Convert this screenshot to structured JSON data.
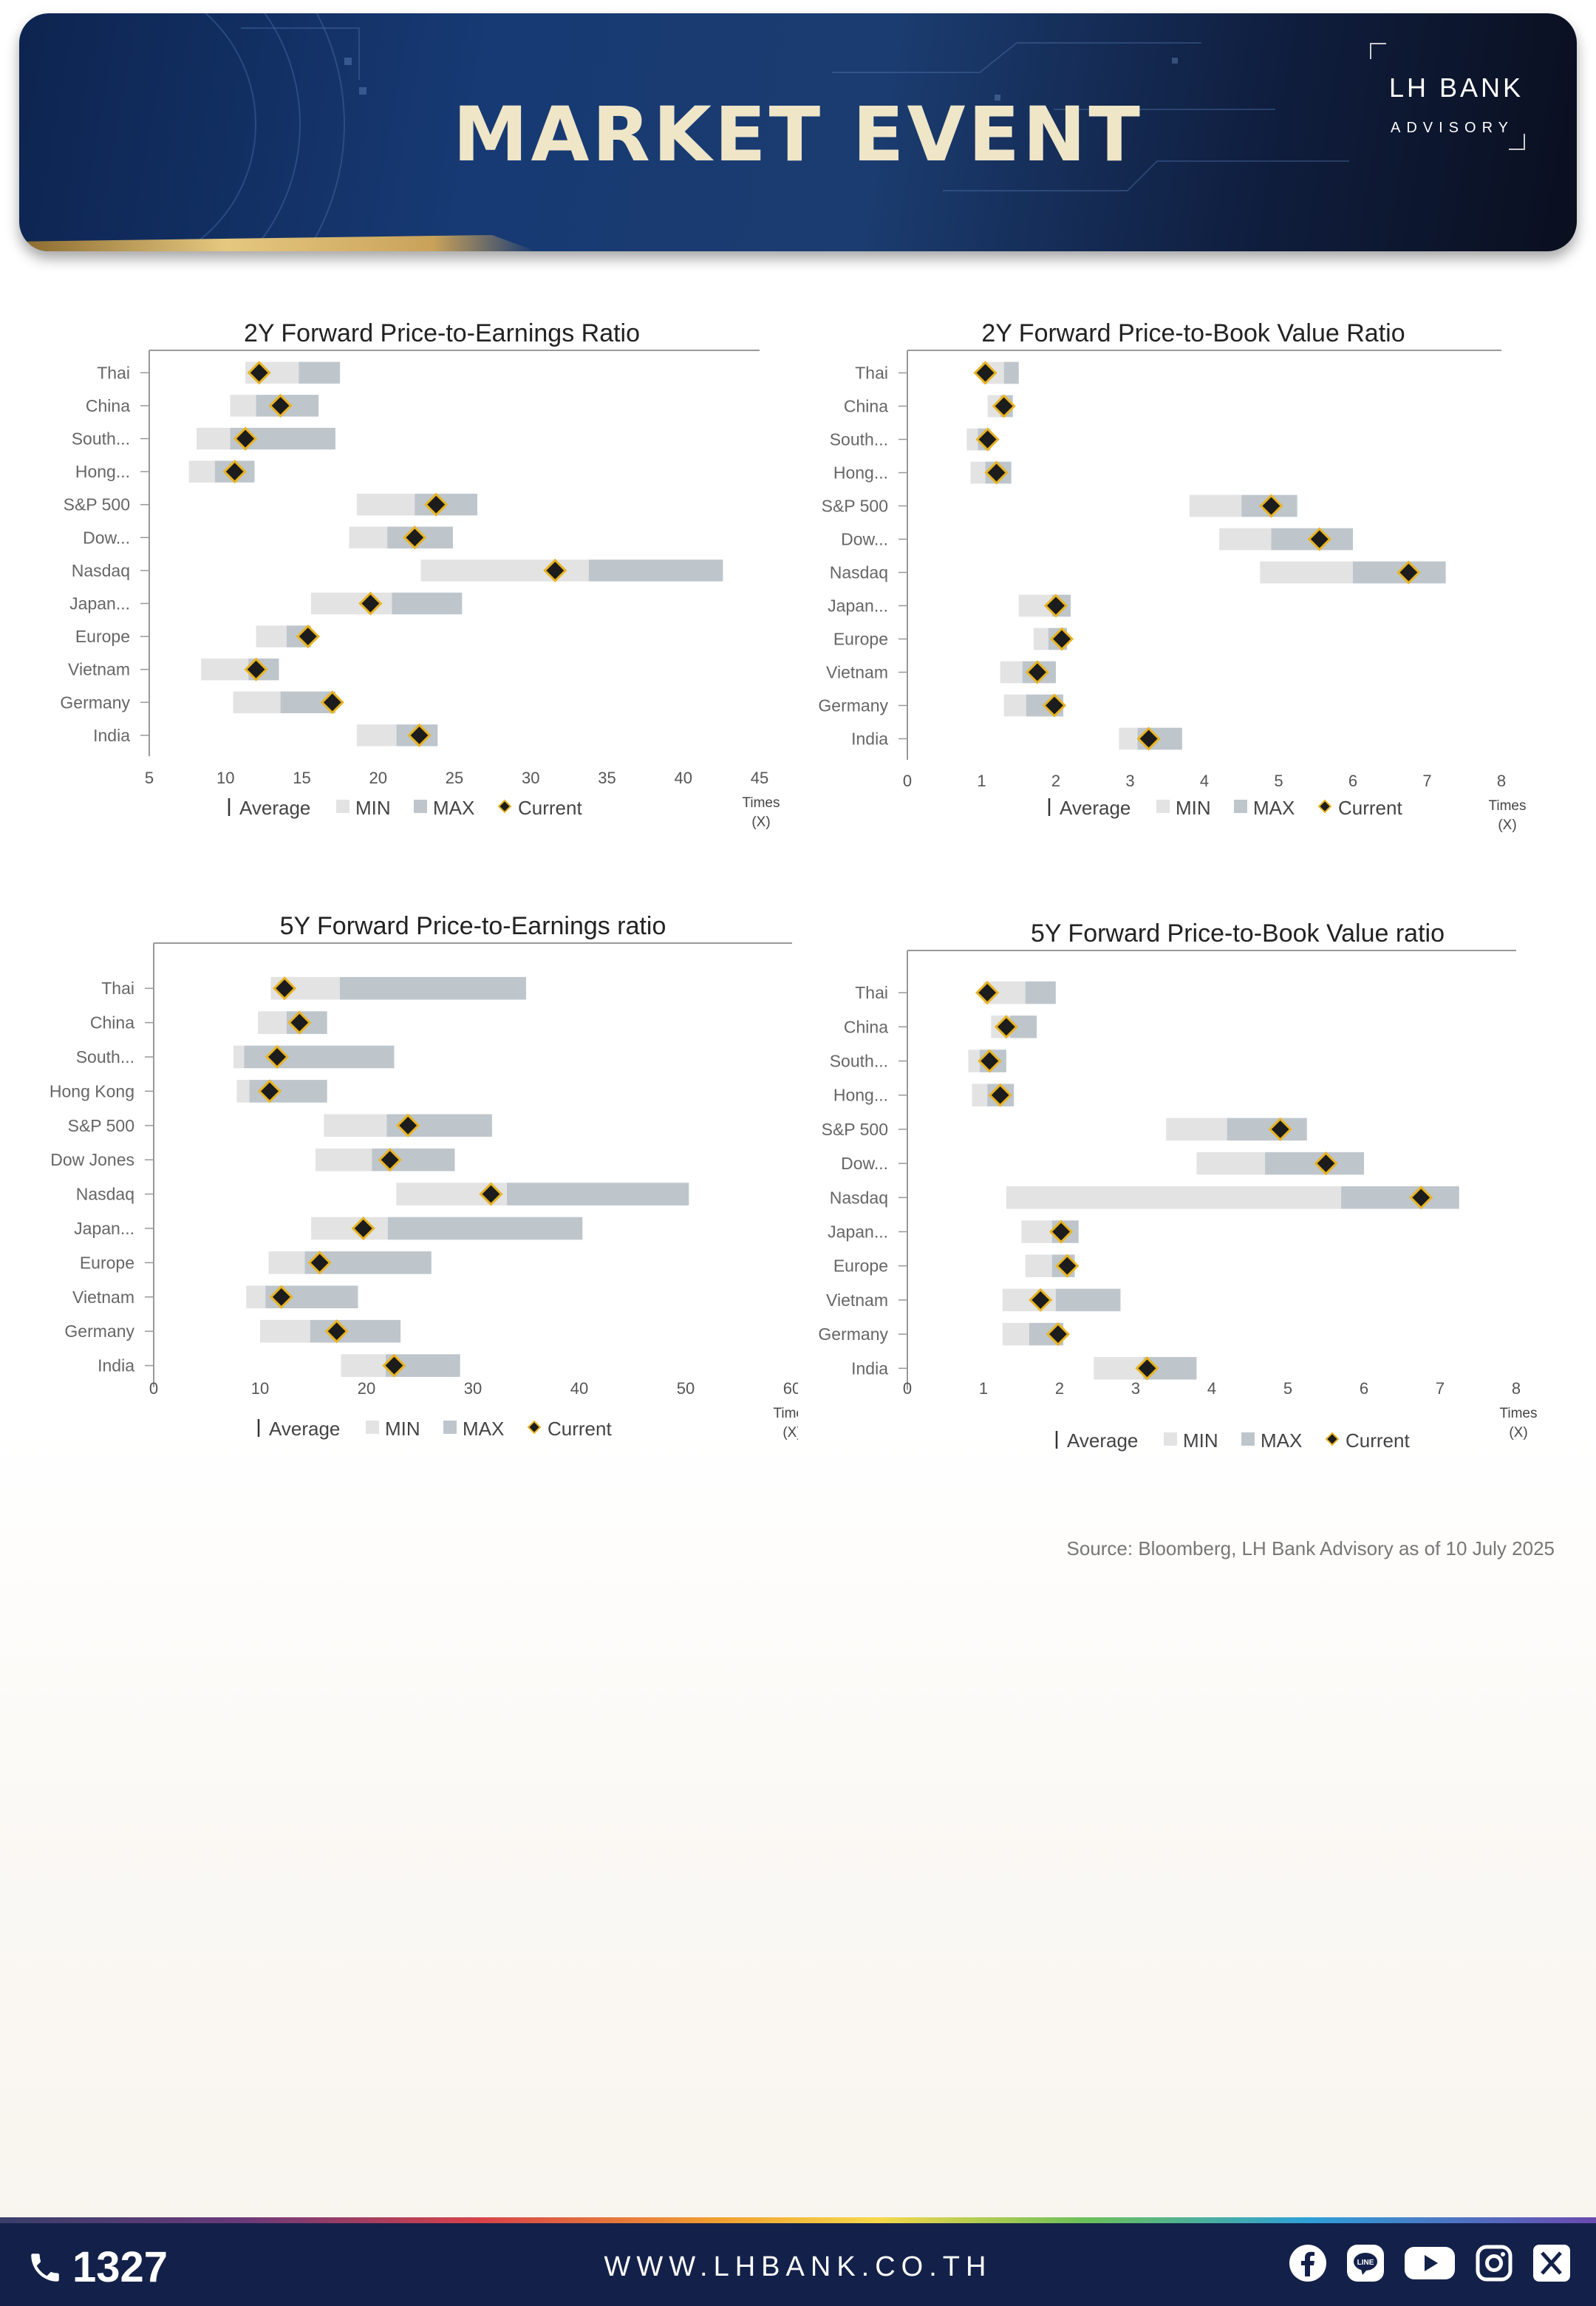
{
  "header": {
    "title": "MARKET EVENT",
    "logo_main": "LH BANK",
    "logo_sub": "ADVISORY"
  },
  "legend": {
    "average": "Average",
    "min": "MIN",
    "max": "MAX",
    "current": "Current"
  },
  "axis_unit": [
    "Times",
    "(X)"
  ],
  "colors": {
    "min": "#e3e3e3",
    "max": "#bec6cc",
    "current_fill": "#1c1c1c",
    "current_edge": "#e8b424",
    "axis": "#999999"
  },
  "chart_data": [
    {
      "type": "bar",
      "title": "2Y Forward Price-to-Earnings Ratio",
      "categories": [
        "Thai",
        "China",
        "South...",
        "Hong...",
        "S&P 500",
        "Dow...",
        "Nasdaq",
        "Japan...",
        "Europe",
        "Vietnam",
        "Germany",
        "India"
      ],
      "min": [
        11.3,
        10.3,
        8.1,
        7.6,
        18.6,
        18.1,
        22.8,
        15.6,
        12.0,
        8.4,
        10.5,
        18.6
      ],
      "average": [
        14.8,
        12.0,
        10.3,
        9.3,
        22.4,
        20.6,
        33.8,
        20.9,
        14.0,
        11.5,
        13.6,
        21.2
      ],
      "max": [
        17.5,
        16.1,
        17.2,
        11.9,
        26.5,
        24.9,
        42.6,
        25.5,
        15.6,
        13.5,
        17.2,
        23.9
      ],
      "current": [
        12.2,
        13.6,
        11.3,
        10.6,
        23.8,
        22.4,
        31.6,
        19.5,
        15.4,
        12.0,
        17.0,
        22.7
      ],
      "xlim": [
        5,
        45
      ],
      "xticks": [
        5,
        10,
        15,
        20,
        25,
        30,
        35,
        40,
        45
      ]
    },
    {
      "type": "bar",
      "title": "2Y Forward Price-to-Book Value Ratio",
      "categories": [
        "Thai",
        "China",
        "South...",
        "Hong...",
        "S&P 500",
        "Dow...",
        "Nasdaq",
        "Japan...",
        "Europe",
        "Vietnam",
        "Germany",
        "India"
      ],
      "min": [
        1.0,
        1.08,
        0.8,
        0.85,
        3.8,
        4.2,
        4.75,
        1.5,
        1.7,
        1.25,
        1.3,
        2.85
      ],
      "average": [
        1.3,
        1.25,
        0.95,
        1.05,
        4.5,
        4.9,
        6.0,
        1.95,
        1.9,
        1.55,
        1.6,
        3.1
      ],
      "max": [
        1.5,
        1.42,
        1.12,
        1.4,
        5.25,
        6.0,
        7.25,
        2.2,
        2.15,
        2.0,
        2.1,
        3.7
      ],
      "current": [
        1.05,
        1.3,
        1.08,
        1.2,
        4.9,
        5.55,
        6.75,
        2.0,
        2.08,
        1.75,
        1.98,
        3.25
      ],
      "xlim": [
        0,
        8
      ],
      "xticks": [
        0,
        1,
        2,
        3,
        4,
        5,
        6,
        7,
        8
      ]
    },
    {
      "type": "bar",
      "title": "5Y Forward Price-to-Earnings ratio",
      "categories": [
        "Thai",
        "China",
        "South...",
        "Hong Kong",
        "S&P 500",
        "Dow Jones",
        "Nasdaq",
        "Japan...",
        "Europe",
        "Vietnam",
        "Germany",
        "India"
      ],
      "min": [
        11.0,
        9.8,
        7.5,
        7.8,
        16.0,
        15.2,
        22.8,
        14.8,
        10.8,
        8.7,
        10.0,
        17.6
      ],
      "average": [
        17.5,
        12.5,
        8.5,
        9.0,
        21.9,
        20.5,
        33.2,
        22.0,
        14.2,
        10.5,
        14.7,
        21.8
      ],
      "max": [
        35.0,
        16.3,
        22.6,
        16.3,
        31.8,
        28.3,
        50.3,
        40.3,
        26.1,
        19.2,
        23.2,
        28.8
      ],
      "current": [
        12.3,
        13.7,
        11.6,
        10.9,
        23.9,
        22.2,
        31.7,
        19.7,
        15.6,
        12.0,
        17.2,
        22.6
      ],
      "xlim": [
        0,
        60
      ],
      "xticks": [
        0,
        10,
        20,
        30,
        40,
        50,
        60
      ]
    },
    {
      "type": "bar",
      "title": "5Y Forward Price-to-Book Value ratio",
      "categories": [
        "Thai",
        "China",
        "South...",
        "Hong...",
        "S&P 500",
        "Dow...",
        "Nasdaq",
        "Japan...",
        "Europe",
        "Vietnam",
        "Germany",
        "India"
      ],
      "min": [
        1.0,
        1.1,
        0.8,
        0.85,
        3.4,
        3.8,
        1.3,
        1.5,
        1.55,
        1.25,
        1.25,
        2.45
      ],
      "average": [
        1.55,
        1.35,
        0.95,
        1.05,
        4.2,
        4.7,
        5.7,
        1.9,
        1.9,
        1.95,
        1.6,
        3.1
      ],
      "max": [
        1.95,
        1.7,
        1.3,
        1.4,
        5.25,
        6.0,
        7.25,
        2.25,
        2.2,
        2.8,
        2.05,
        3.8
      ],
      "current": [
        1.05,
        1.3,
        1.08,
        1.22,
        4.9,
        5.5,
        6.75,
        2.02,
        2.1,
        1.75,
        1.98,
        3.15
      ],
      "xlim": [
        0,
        8
      ],
      "xticks": [
        0,
        1,
        2,
        3,
        4,
        5,
        6,
        7,
        8
      ]
    }
  ],
  "source": "Source: Bloomberg,  LH Bank Advisory  as of 10 July 2025",
  "footer": {
    "phone": "1327",
    "website": "WWW.LHBANK.CO.TH",
    "socials": [
      "facebook-icon",
      "line-icon",
      "youtube-icon",
      "instagram-icon",
      "x-icon"
    ]
  }
}
